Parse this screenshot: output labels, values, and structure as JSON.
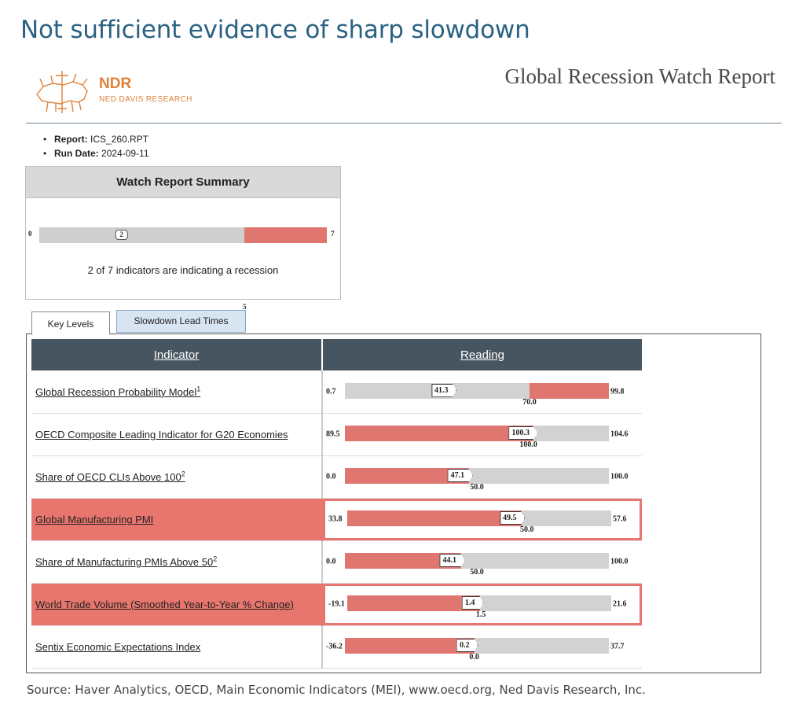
{
  "headline": "Not sufficient evidence of sharp slowdown",
  "brand": {
    "name": "NDR",
    "subtitle": "NED DAVIS RESEARCH",
    "logo_icon": "bull-bear-logo-icon",
    "accent": "#e0813a"
  },
  "report_title": "Global Recession Watch Report",
  "meta": {
    "report_label": "Report:",
    "report_value": "ICS_260.RPT",
    "run_label": "Run Date:",
    "run_value": "2024-09-11"
  },
  "summary": {
    "title": "Watch Report Summary",
    "min": "0",
    "max": "7",
    "current": "2",
    "threshold": "5",
    "current_value": 2,
    "threshold_value": 5,
    "min_value": 0,
    "max_value": 7,
    "text": "2 of 7 indicators are indicating a recession"
  },
  "tabs": {
    "key_levels": "Key Levels",
    "lead_times": "Slowdown Lead Times"
  },
  "table": {
    "col_indicator": "Indicator",
    "col_reading": "Reading",
    "rows": [
      {
        "name": "Global Recession Probability Model",
        "sup": "1",
        "alert": false,
        "min": "0.7",
        "max": "99.8",
        "current": "41.3",
        "threshold": "70.0",
        "min_v": 0.7,
        "max_v": 99.8,
        "cur_v": 41.3,
        "thr_v": 70.0,
        "red_above": true
      },
      {
        "name": "OECD Composite Leading Indicator for G20 Economies",
        "sup": "",
        "alert": false,
        "min": "89.5",
        "max": "104.6",
        "current": "100.3",
        "threshold": "100.0",
        "min_v": 89.5,
        "max_v": 104.6,
        "cur_v": 100.3,
        "thr_v": 100.0,
        "red_above": false
      },
      {
        "name": "Share of OECD CLIs Above 100",
        "sup": "2",
        "alert": false,
        "min": "0.0",
        "max": "100.0",
        "current": "47.1",
        "threshold": "50.0",
        "min_v": 0.0,
        "max_v": 100.0,
        "cur_v": 47.1,
        "thr_v": 50.0,
        "red_above": false
      },
      {
        "name": "Global Manufacturing PMI",
        "sup": "",
        "alert": true,
        "min": "33.8",
        "max": "57.6",
        "current": "49.5",
        "threshold": "50.0",
        "min_v": 33.8,
        "max_v": 57.6,
        "cur_v": 49.5,
        "thr_v": 50.0,
        "red_above": false
      },
      {
        "name": "Share of Manufacturing PMIs Above 50",
        "sup": "2",
        "alert": false,
        "min": "0.0",
        "max": "100.0",
        "current": "44.1",
        "threshold": "50.0",
        "min_v": 0.0,
        "max_v": 100.0,
        "cur_v": 44.1,
        "thr_v": 50.0,
        "red_above": false
      },
      {
        "name": "World Trade Volume (Smoothed Year-to-Year % Change)",
        "sup": "",
        "alert": true,
        "min": "-19.1",
        "max": "21.6",
        "current": "1.4",
        "threshold": "1.5",
        "min_v": -19.1,
        "max_v": 21.6,
        "cur_v": 1.4,
        "thr_v": 1.5,
        "red_above": false
      },
      {
        "name": "Sentix Economic Expectations Index",
        "sup": "",
        "alert": false,
        "min": "-36.2",
        "max": "37.7",
        "current": "0.2",
        "threshold": "0.0",
        "min_v": -36.2,
        "max_v": 37.7,
        "cur_v": 0.2,
        "thr_v": 0.0,
        "red_above": false
      }
    ]
  },
  "source": "Source: Haver Analytics, OECD, Main Economic Indicators (MEI), www.oecd.org, Ned Davis Research, Inc.",
  "colors": {
    "headline": "#2a6283",
    "header_bg": "#465560",
    "alert": "#e8766e",
    "bar_red": "#e07670",
    "bar_grey": "#d2d2d2",
    "tab_inactive": "#d7e4f2"
  }
}
